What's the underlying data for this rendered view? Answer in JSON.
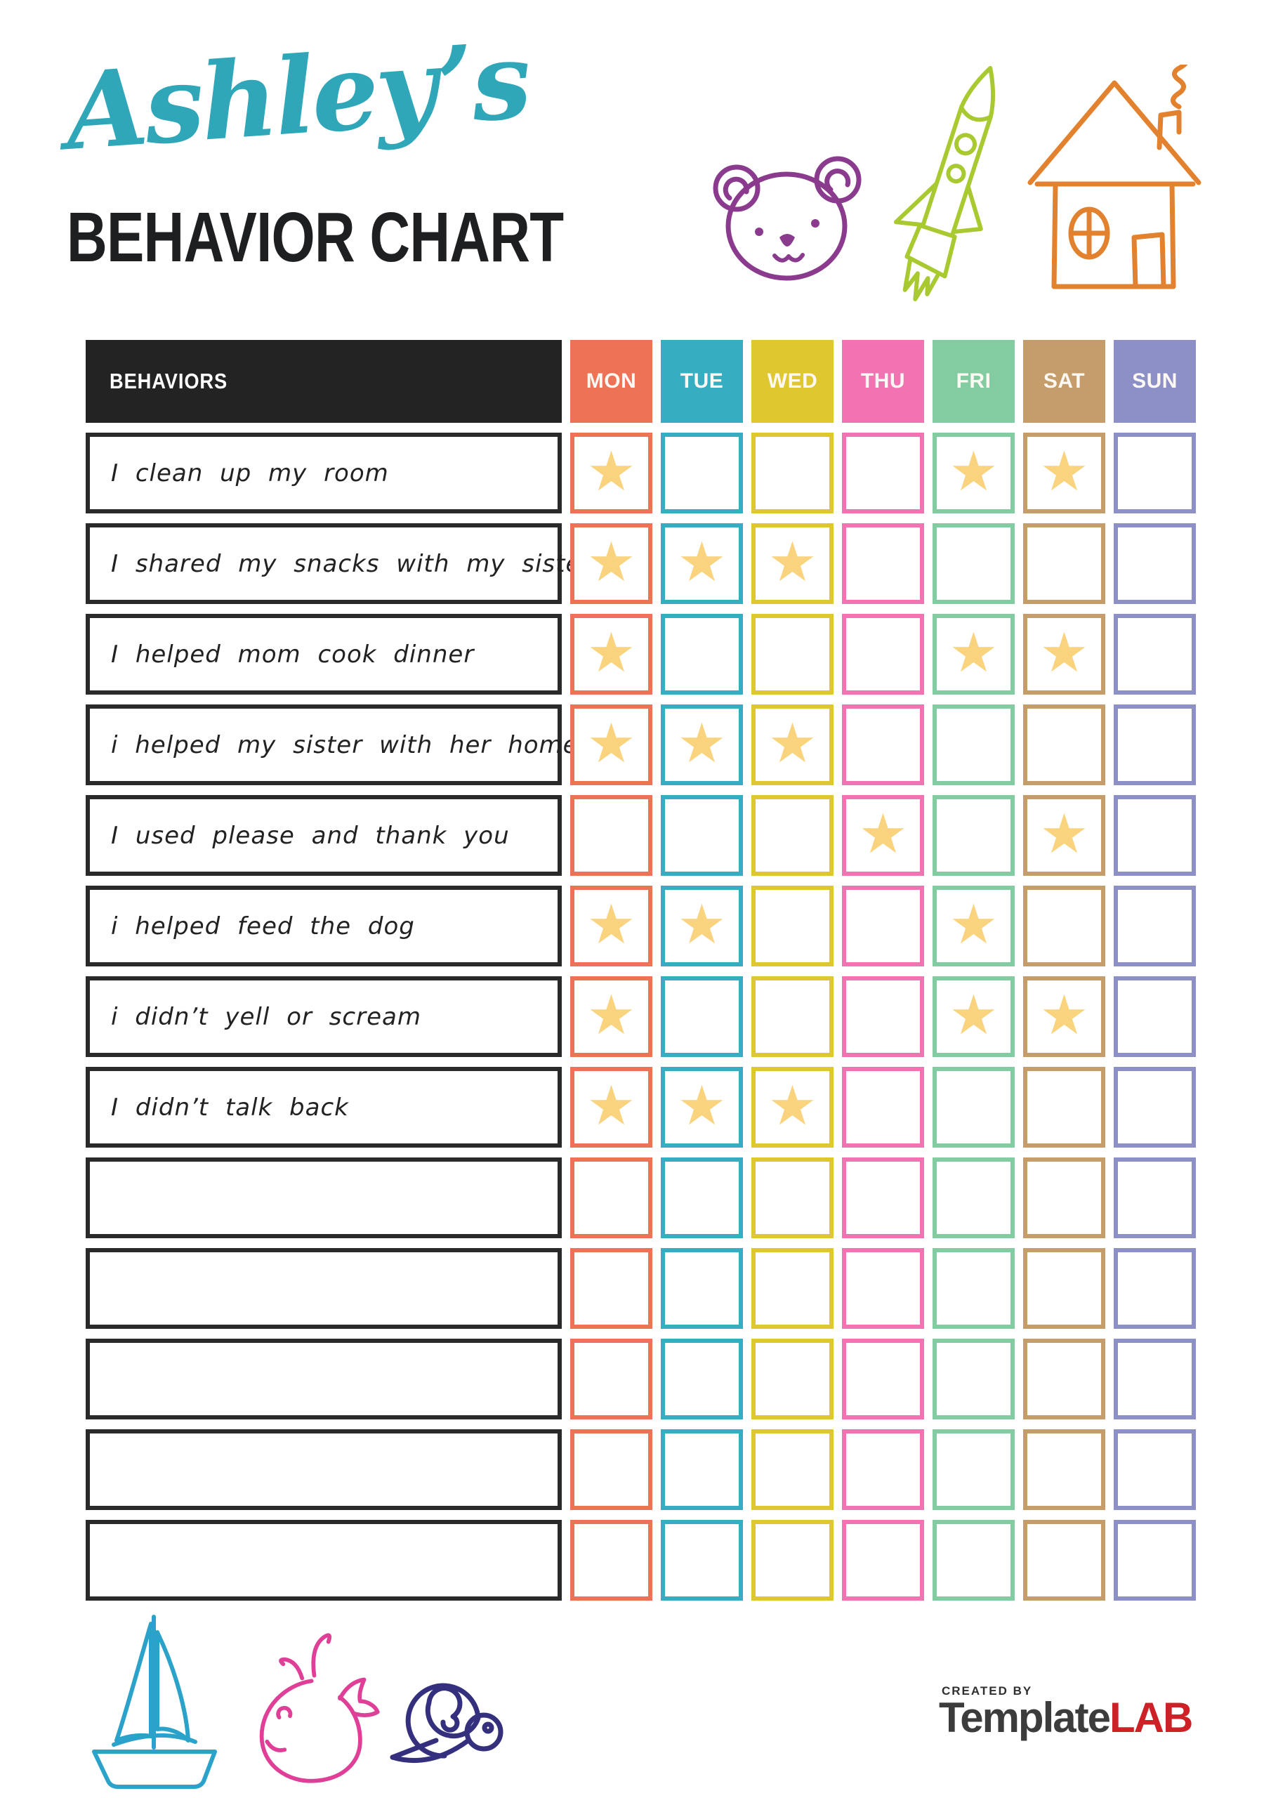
{
  "title": {
    "name": "Ashley’s",
    "subtitle": "BEHAVIOR CHART"
  },
  "header_icons": [
    "bear-icon",
    "rocket-icon",
    "house-icon"
  ],
  "table": {
    "behaviors_header": "BEHAVIORS",
    "days": [
      {
        "label": "MON",
        "color": "#ee7256"
      },
      {
        "label": "TUE",
        "color": "#36adc1"
      },
      {
        "label": "WED",
        "color": "#dfc72f"
      },
      {
        "label": "THU",
        "color": "#f173b1"
      },
      {
        "label": "FRI",
        "color": "#83cba0"
      },
      {
        "label": "SAT",
        "color": "#c59d6a"
      },
      {
        "label": "SUN",
        "color": "#8d8fc7"
      }
    ],
    "star_icon": "★",
    "star_color": "#f9d37e",
    "rows": [
      {
        "behavior": "I clean up my room",
        "cells": [
          1,
          0,
          0,
          0,
          1,
          1,
          0
        ]
      },
      {
        "behavior": "I shared my snacks with my sister",
        "cells": [
          1,
          1,
          1,
          0,
          0,
          0,
          0
        ]
      },
      {
        "behavior": "I helped mom cook dinner",
        "cells": [
          1,
          0,
          0,
          0,
          1,
          1,
          0
        ]
      },
      {
        "behavior": "i helped my sister with her homework",
        "cells": [
          1,
          1,
          1,
          0,
          0,
          0,
          0
        ]
      },
      {
        "behavior": "I used please and thank you",
        "cells": [
          0,
          0,
          0,
          1,
          0,
          1,
          0
        ]
      },
      {
        "behavior": "i helped feed the dog",
        "cells": [
          1,
          1,
          0,
          0,
          1,
          0,
          0
        ]
      },
      {
        "behavior": "i didn’t yell or scream",
        "cells": [
          1,
          0,
          0,
          0,
          1,
          1,
          0
        ]
      },
      {
        "behavior": "I didn’t talk back",
        "cells": [
          1,
          1,
          1,
          0,
          0,
          0,
          0
        ]
      },
      {
        "behavior": "",
        "cells": [
          0,
          0,
          0,
          0,
          0,
          0,
          0
        ]
      },
      {
        "behavior": "",
        "cells": [
          0,
          0,
          0,
          0,
          0,
          0,
          0
        ]
      },
      {
        "behavior": "",
        "cells": [
          0,
          0,
          0,
          0,
          0,
          0,
          0
        ]
      },
      {
        "behavior": "",
        "cells": [
          0,
          0,
          0,
          0,
          0,
          0,
          0
        ]
      },
      {
        "behavior": "",
        "cells": [
          0,
          0,
          0,
          0,
          0,
          0,
          0
        ]
      }
    ]
  },
  "footer": {
    "doodles": [
      "sailboat-icon",
      "whale-icon",
      "snail-icon"
    ],
    "created_by": "CREATED BY",
    "brand": "Template",
    "brand_suffix": "LAB"
  },
  "colors": {
    "title_teal": "#2fa7b8",
    "heading_black": "#1e1f21",
    "table_header_black": "#232323",
    "bear_purple": "#8a3b8d",
    "rocket_green": "#a9c930",
    "house_orange": "#e2812e",
    "sailboat_blue": "#2aa2c9",
    "whale_pink": "#e03f97",
    "snail_navy": "#34307e",
    "logo_gray": "#3c3c3c",
    "logo_red": "#cc2127"
  }
}
